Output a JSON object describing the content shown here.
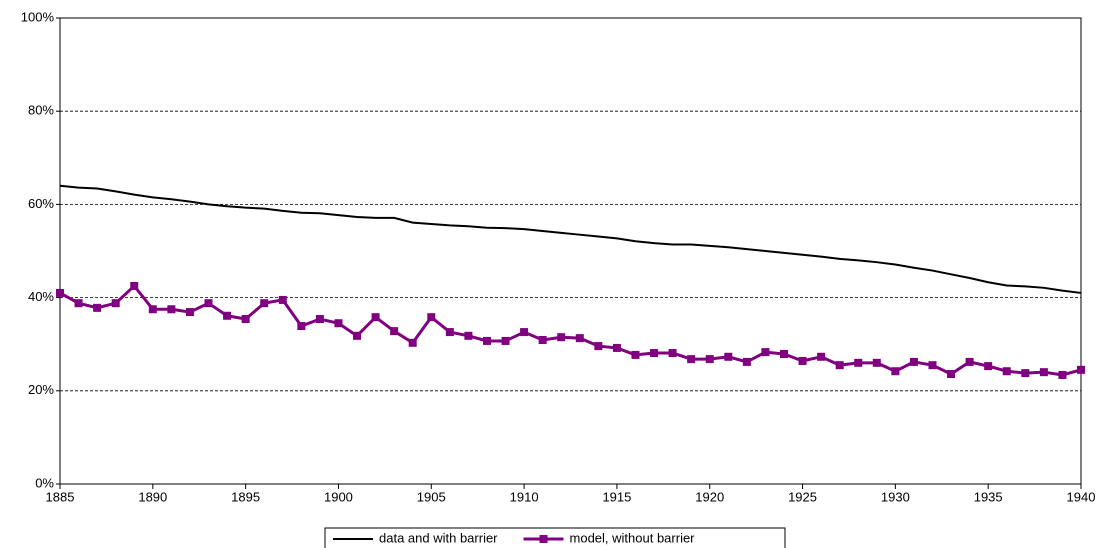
{
  "chart_data": {
    "type": "line",
    "x": [
      1885,
      1886,
      1887,
      1888,
      1889,
      1890,
      1891,
      1892,
      1893,
      1894,
      1895,
      1896,
      1897,
      1898,
      1899,
      1900,
      1901,
      1902,
      1903,
      1904,
      1905,
      1906,
      1907,
      1908,
      1909,
      1910,
      1911,
      1912,
      1913,
      1914,
      1915,
      1916,
      1917,
      1918,
      1919,
      1920,
      1921,
      1922,
      1923,
      1924,
      1925,
      1926,
      1927,
      1928,
      1929,
      1930,
      1931,
      1932,
      1933,
      1934,
      1935,
      1936,
      1937,
      1938,
      1939,
      1940
    ],
    "series": [
      {
        "name": "data and with barrier",
        "color": "#000000",
        "marker": false,
        "values": [
          64,
          63.6,
          63.4,
          62.8,
          62.1,
          61.5,
          61.1,
          60.6,
          60.0,
          59.6,
          59.3,
          59.1,
          58.6,
          58.2,
          58.1,
          57.7,
          57.3,
          57.1,
          57.1,
          56.1,
          55.8,
          55.5,
          55.3,
          55.0,
          54.9,
          54.7,
          54.3,
          53.9,
          53.5,
          53.1,
          52.7,
          52.1,
          51.7,
          51.4,
          51.4,
          51.1,
          50.8,
          50.4,
          50.0,
          49.6,
          49.2,
          48.8,
          48.3,
          48.0,
          47.6,
          47.1,
          46.4,
          45.8,
          45.0,
          44.2,
          43.3,
          42.6,
          42.4,
          42.1,
          41.5,
          41.0
        ]
      },
      {
        "name": "model, without barrier",
        "color": "#800080",
        "marker": true,
        "values": [
          41,
          38.8,
          37.8,
          38.8,
          42.5,
          37.5,
          37.5,
          36.9,
          38.8,
          36.1,
          35.4,
          38.8,
          39.5,
          33.9,
          35.4,
          34.5,
          31.8,
          35.8,
          32.8,
          30.3,
          35.8,
          32.6,
          31.8,
          30.7,
          30.7,
          32.6,
          30.9,
          31.5,
          31.3,
          29.6,
          29.2,
          27.7,
          28.1,
          28.1,
          26.8,
          26.8,
          27.3,
          26.2,
          28.3,
          27.9,
          26.4,
          27.3,
          25.5,
          26,
          26,
          24.2,
          26.2,
          25.5,
          23.6,
          26.2,
          25.3,
          24.2,
          23.8,
          24,
          23.4,
          24.5
        ]
      }
    ],
    "xlim": [
      1885,
      1940
    ],
    "xticks": [
      1885,
      1890,
      1895,
      1900,
      1905,
      1910,
      1915,
      1920,
      1925,
      1930,
      1935,
      1940
    ],
    "ylim": [
      0,
      100
    ],
    "yticks": [
      {
        "value": 0,
        "label": "0%"
      },
      {
        "value": 20,
        "label": "20%"
      },
      {
        "value": 40,
        "label": "40%"
      },
      {
        "value": 60,
        "label": "60%"
      },
      {
        "value": 80,
        "label": "80%"
      },
      {
        "value": 100,
        "label": "100%"
      }
    ],
    "grid": true,
    "legend": "bottom"
  }
}
